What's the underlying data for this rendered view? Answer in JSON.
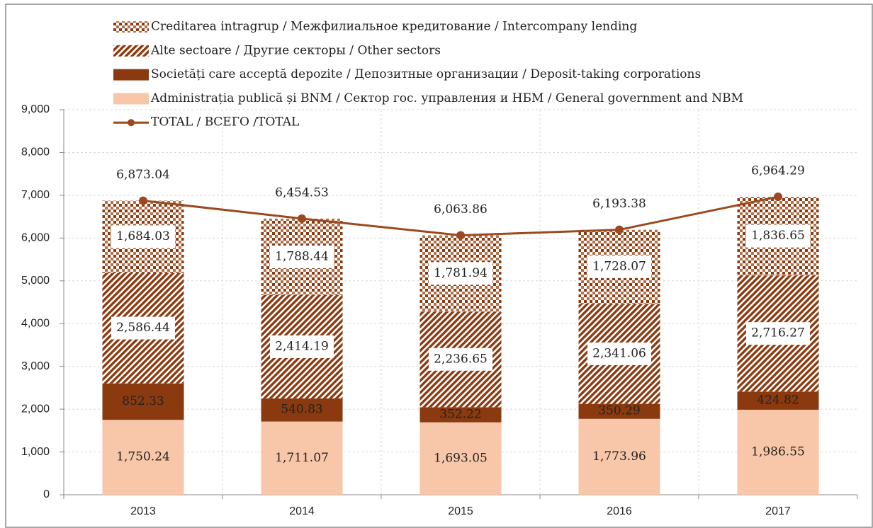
{
  "chart_data": {
    "type": "stacked-bar-line",
    "categories": [
      "2013",
      "2014",
      "2015",
      "2016",
      "2017"
    ],
    "series": [
      {
        "name": "Administrația publică și BNM / Сектор гос. управления и НБМ / General government and NBM",
        "color": "#f8c6a8",
        "label_color": "#222222",
        "values": [
          1750.24,
          1711.07,
          1693.05,
          1773.96,
          1986.55
        ],
        "value_labels": [
          "1,750.24",
          "1,711.07",
          "1,693.05",
          "1,773.96",
          "1,986.55"
        ]
      },
      {
        "name": "Societăți care acceptă depozite / Депозитные организации / Deposit-taking corporations",
        "color": "#8b3a10",
        "label_color": "#ffffff",
        "values": [
          852.33,
          540.83,
          352.22,
          350.29,
          424.82
        ],
        "value_labels": [
          "852.33",
          "540.83",
          "352.22",
          "350.29",
          "424.82"
        ]
      },
      {
        "name": "Alte sectoare / Другие секторы / Other sectors",
        "color": "#8b3a10",
        "pattern": "diagonal",
        "label_color": "#222222",
        "values": [
          2586.44,
          2414.19,
          2236.65,
          2341.06,
          2716.27
        ],
        "value_labels": [
          "2,586.44",
          "2,414.19",
          "2,236.65",
          "2,341.06",
          "2,716.27"
        ]
      },
      {
        "name": "Creditarea intragrup / Межфилиальное кредитование / Intercompany lending",
        "color": "#8b3a10",
        "pattern": "checker",
        "label_color": "#222222",
        "values": [
          1684.03,
          1788.44,
          1781.94,
          1728.07,
          1836.65
        ],
        "value_labels": [
          "1,684.03",
          "1,788.44",
          "1,781.94",
          "1,728.07",
          "1,836.65"
        ]
      }
    ],
    "total": {
      "name": "TOTAL / ВСЕГО /TOTAL",
      "color": "#9a4a1e",
      "values": [
        6873.04,
        6454.53,
        6063.86,
        6193.38,
        6964.29
      ],
      "value_labels": [
        "6,873.04",
        "6,454.53",
        "6,063.86",
        "6,193.38",
        "6,964.29"
      ]
    },
    "ylim": [
      0,
      9000
    ],
    "yticks": [
      0,
      {
        "value": 1000,
        "label": "1,000"
      },
      {
        "value": 2000,
        "label": "2,000"
      },
      {
        "value": 3000,
        "label": "3,000"
      },
      {
        "value": 4000,
        "label": "4,000"
      },
      {
        "value": 5000,
        "label": "5,000"
      },
      {
        "value": 6000,
        "label": "6,000"
      },
      {
        "value": 7000,
        "label": "7,000"
      },
      {
        "value": 8000,
        "label": "8,000"
      },
      {
        "value": 9000,
        "label": "9,000"
      }
    ],
    "grid": true
  }
}
